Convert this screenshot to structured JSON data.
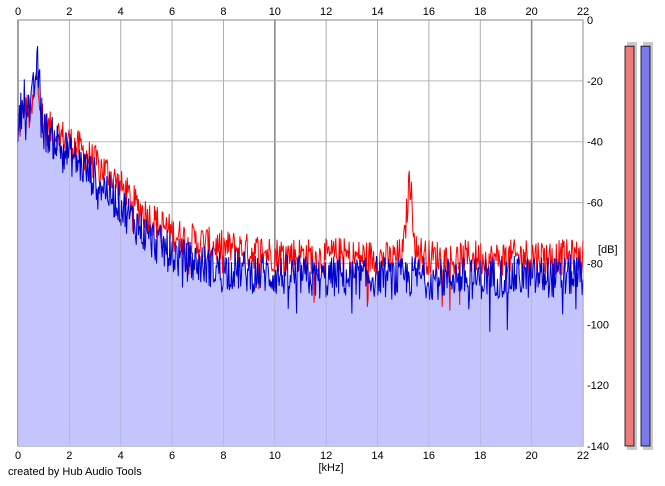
{
  "credit": "created by Hub Audio Tools",
  "chart_data": {
    "type": "line",
    "xlabel": "[kHz]",
    "ylabel": "[dB]",
    "xlim": [
      0,
      22
    ],
    "ylim": [
      -140,
      0
    ],
    "x_ticks": [
      0,
      2,
      4,
      6,
      8,
      10,
      12,
      14,
      16,
      18,
      20,
      22
    ],
    "y_ticks": [
      0,
      -20,
      -40,
      -60,
      -80,
      -100,
      -120,
      -140
    ],
    "grid": true,
    "x_unit": "kHz",
    "fill_color": "#c4c4ff",
    "series": [
      {
        "color": "#ff0000",
        "x": [
          0,
          0.25,
          0.5,
          0.75,
          1,
          1.5,
          2,
          2.5,
          3,
          3.5,
          4,
          4.5,
          5,
          5.5,
          6,
          6.5,
          7,
          7.5,
          8,
          8.5,
          9,
          9.5,
          10,
          10.5,
          11,
          11.5,
          12,
          12.5,
          13,
          13.5,
          14,
          14.5,
          15,
          15.25,
          15.5,
          16,
          16.5,
          17,
          17.5,
          18,
          18.5,
          19,
          19.5,
          20,
          20.5,
          21,
          21.5,
          22
        ],
        "values": [
          -38,
          -27,
          -33,
          -17,
          -35,
          -37,
          -40,
          -43,
          -47,
          -50,
          -55,
          -60,
          -64,
          -67,
          -70,
          -72,
          -73,
          -74,
          -75,
          -75,
          -76,
          -76,
          -77,
          -77,
          -77,
          -78,
          -78,
          -77,
          -78,
          -78,
          -78,
          -79,
          -77,
          -52,
          -76,
          -78,
          -78,
          -79,
          -78,
          -78,
          -79,
          -78,
          -78,
          -77,
          -78,
          -78,
          -78,
          -78
        ]
      },
      {
        "color": "#0000cc",
        "x": [
          0,
          0.25,
          0.5,
          0.75,
          1,
          1.5,
          2,
          2.5,
          3,
          3.5,
          4,
          4.5,
          5,
          5.5,
          6,
          6.5,
          7,
          7.5,
          8,
          8.5,
          9,
          9.5,
          10,
          10.5,
          11,
          11.5,
          12,
          12.5,
          13,
          13.5,
          14,
          14.5,
          15,
          15.5,
          16,
          16.5,
          17,
          17.5,
          18,
          18.5,
          19,
          19.5,
          20,
          20.5,
          21,
          21.5,
          22
        ],
        "values": [
          -35,
          -24,
          -30,
          -14,
          -36,
          -40,
          -44,
          -48,
          -52,
          -56,
          -61,
          -66,
          -71,
          -74,
          -77,
          -79,
          -80,
          -81,
          -82,
          -82,
          -83,
          -83,
          -84,
          -84,
          -84,
          -85,
          -85,
          -84,
          -85,
          -85,
          -84,
          -85,
          -85,
          -84,
          -85,
          -85,
          -84,
          -85,
          -85,
          -84,
          -85,
          -84,
          -85,
          -84,
          -85,
          -84,
          -84
        ]
      }
    ]
  },
  "meters": [
    {
      "color": "#ee7a7a",
      "level": 0.98
    },
    {
      "color": "#7a7aee",
      "level": 0.98
    }
  ]
}
